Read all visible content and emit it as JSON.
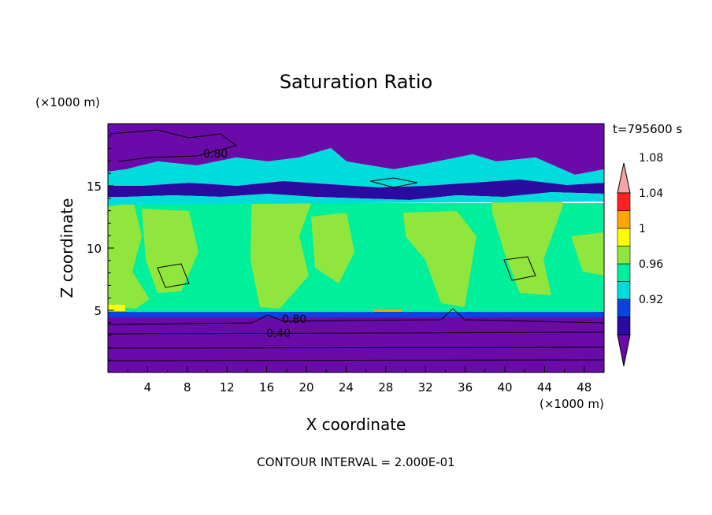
{
  "chart_data": {
    "type": "heatmap",
    "title": "Saturation Ratio",
    "xlabel": "X coordinate",
    "ylabel": "Z coordinate",
    "x_unit": "(×1000 m)",
    "y_unit": "(×1000 m)",
    "time_label": "t=795600 s",
    "footer": "CONTOUR INTERVAL = 2.000E-01",
    "xlim": [
      0,
      50
    ],
    "ylim": [
      0,
      20
    ],
    "x_ticks": [
      4,
      8,
      12,
      16,
      20,
      24,
      28,
      32,
      36,
      40,
      44,
      48
    ],
    "y_ticks": [
      5,
      10,
      15
    ],
    "contour_labels": [
      "0.80",
      "0.80",
      "0.40"
    ],
    "colorbar": {
      "labels": [
        "0.92",
        "0.96",
        "1",
        "1.04",
        "1.08"
      ],
      "levels": [
        0.92,
        0.96,
        1.0,
        1.04,
        1.08
      ],
      "colors": [
        "#6a0aa8",
        "#2a0aa0",
        "#0a44e0",
        "#00dcdc",
        "#00ef9a",
        "#90e63c",
        "#ffff00",
        "#ffa500",
        "#ff2020",
        "#f4a4a4"
      ]
    }
  }
}
